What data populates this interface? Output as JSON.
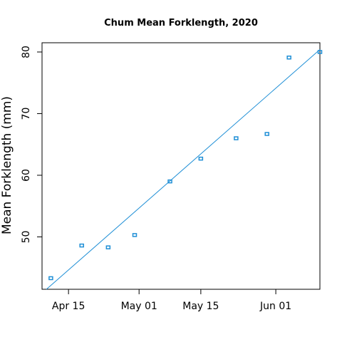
{
  "chart_data": {
    "type": "scatter",
    "title": "Chum Mean Forklength, 2020",
    "xlabel": "",
    "ylabel": "Mean Forklength (mm)",
    "x_axis": {
      "type": "date",
      "range": [
        "2020-04-09",
        "2020-06-11"
      ],
      "ticks": [
        {
          "date": "2020-04-15",
          "label": "Apr 15"
        },
        {
          "date": "2020-05-01",
          "label": "May 01"
        },
        {
          "date": "2020-05-15",
          "label": "May 15"
        },
        {
          "date": "2020-06-01",
          "label": "Jun 01"
        }
      ]
    },
    "y_axis": {
      "range": [
        41.5,
        81.5
      ],
      "ticks": [
        50,
        60,
        70,
        80
      ]
    },
    "points": [
      {
        "date": "2020-04-11",
        "y": 43.3
      },
      {
        "date": "2020-04-18",
        "y": 48.6
      },
      {
        "date": "2020-04-24",
        "y": 48.3
      },
      {
        "date": "2020-04-30",
        "y": 50.3
      },
      {
        "date": "2020-05-08",
        "y": 59.0
      },
      {
        "date": "2020-05-15",
        "y": 62.7
      },
      {
        "date": "2020-05-23",
        "y": 66.0
      },
      {
        "date": "2020-05-30",
        "y": 66.7
      },
      {
        "date": "2020-06-04",
        "y": 79.1
      },
      {
        "date": "2020-06-11",
        "y": 80.0
      }
    ],
    "trend_line": {
      "type": "linear",
      "start": {
        "date": "2020-04-10",
        "y": 41.5
      },
      "end": {
        "date": "2020-06-11",
        "y": 80.4
      }
    },
    "colors": {
      "points": "#1f8fd6",
      "trend_line": "#1f8fd6",
      "axes": "#000000"
    },
    "grid": false,
    "legend": "none"
  }
}
